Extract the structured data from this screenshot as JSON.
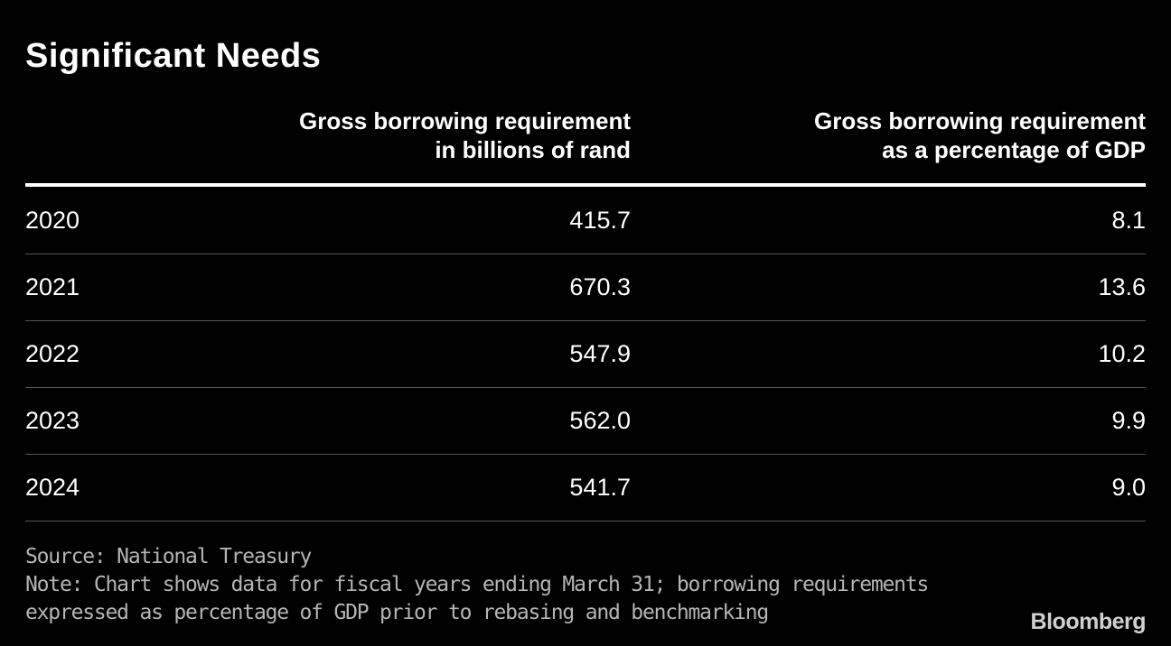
{
  "chart_data": {
    "type": "table",
    "title": "Significant Needs",
    "columns": [
      "",
      "Gross borrowing requirement in billions of rand",
      "Gross borrowing requirement as a percentage of GDP"
    ],
    "header_lines": {
      "col1": [
        "Gross borrowing requirement",
        "in billions of rand"
      ],
      "col2": [
        "Gross borrowing requirement",
        "as a percentage of GDP"
      ]
    },
    "rows": [
      {
        "year": "2020",
        "borrowing_billions_rand": "415.7",
        "pct_gdp": "8.1"
      },
      {
        "year": "2021",
        "borrowing_billions_rand": "670.3",
        "pct_gdp": "13.6"
      },
      {
        "year": "2022",
        "borrowing_billions_rand": "547.9",
        "pct_gdp": "10.2"
      },
      {
        "year": "2023",
        "borrowing_billions_rand": "562.0",
        "pct_gdp": "9.9"
      },
      {
        "year": "2024",
        "borrowing_billions_rand": "541.7",
        "pct_gdp": "9.0"
      }
    ],
    "source": "Source: National Treasury",
    "note_lines": [
      "Note: Chart shows data for fiscal years ending March 31; borrowing requirements",
      "expressed as percentage of GDP prior to rebasing and benchmarking"
    ]
  },
  "brand": "Bloomberg",
  "colors": {
    "background": "#000000",
    "text": "#ffffff",
    "notes": "#b5b5b5",
    "row_divider": "#555555"
  }
}
